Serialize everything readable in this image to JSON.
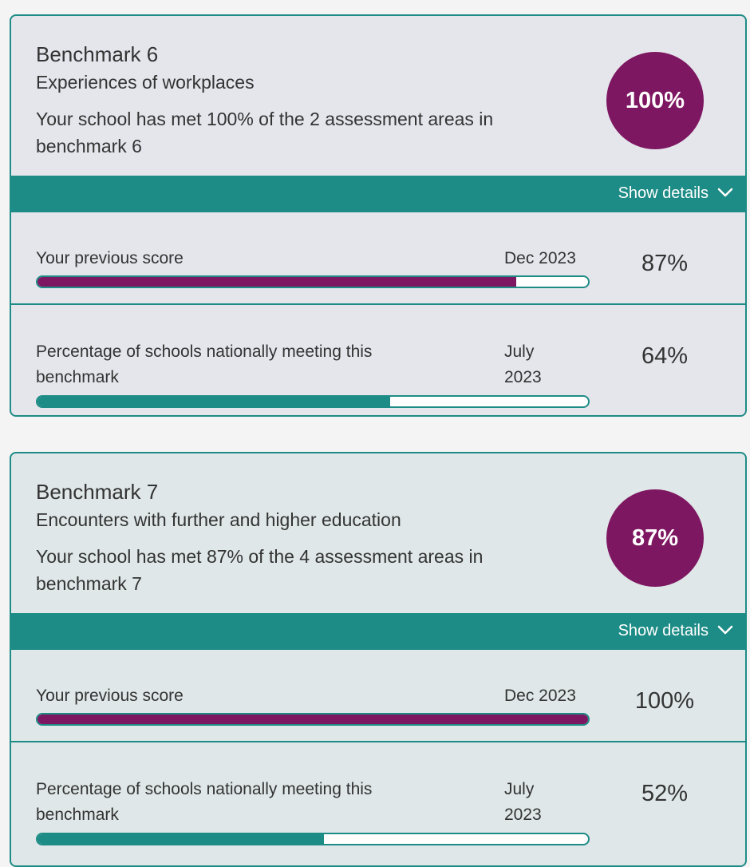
{
  "cards": [
    {
      "title": "Benchmark 6",
      "subtitle": "Experiences of workplaces",
      "description": "Your school has met 100% of the 2 assessment areas in benchmark 6",
      "score": "100%",
      "details_label": "Show details",
      "details_icon": "chevron-down-icon",
      "previous": {
        "label": "Your previous score",
        "date": "Dec 2023",
        "value": "87%",
        "progress_percent": 87
      },
      "national": {
        "label": "Percentage of schools nationally meeting this benchmark",
        "date": "July 2023",
        "value": "64%",
        "progress_percent": 64
      }
    },
    {
      "title": "Benchmark 7",
      "subtitle": "Encounters with further and higher education",
      "description": "Your school has met 87% of the 4 assessment areas in benchmark 7",
      "score": "87%",
      "details_label": "Show details",
      "details_icon": "chevron-down-icon",
      "previous": {
        "label": "Your previous score",
        "date": "Dec 2023",
        "value": "100%",
        "progress_percent": 100
      },
      "national": {
        "label": "Percentage of schools nationally meeting this benchmark",
        "date": "July 2023",
        "value": "52%",
        "progress_percent": 52
      }
    }
  ],
  "colors": {
    "accent_teal": "#1e8c86",
    "score_purple": "#7e1761"
  }
}
